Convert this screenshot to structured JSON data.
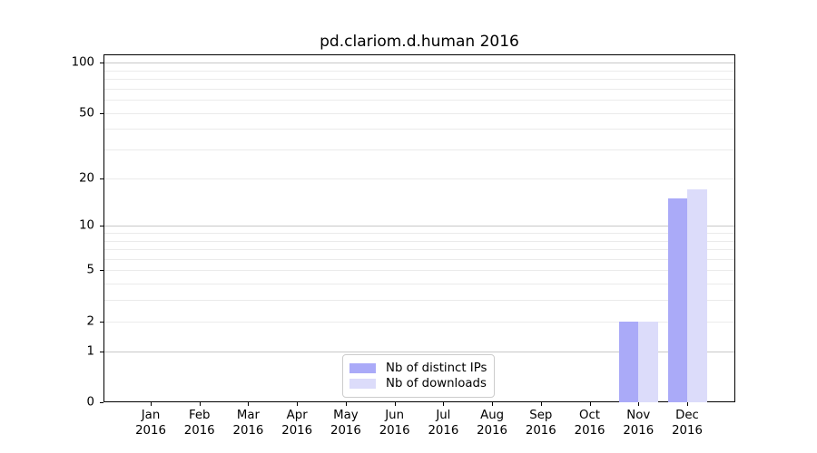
{
  "title": "pd.clariom.d.human 2016",
  "chart_data": {
    "type": "bar",
    "title": "pd.clariom.d.human 2016",
    "categories": [
      "Jan 2016",
      "Feb 2016",
      "Mar 2016",
      "Apr 2016",
      "May 2016",
      "Jun 2016",
      "Jul 2016",
      "Aug 2016",
      "Sep 2016",
      "Oct 2016",
      "Nov 2016",
      "Dec 2016"
    ],
    "series": [
      {
        "name": "Nb of distinct IPs",
        "color": "#aaaaf8",
        "values": [
          0,
          0,
          0,
          0,
          0,
          0,
          0,
          0,
          0,
          0,
          2,
          15
        ]
      },
      {
        "name": "Nb of downloads",
        "color": "#dcdcfa",
        "values": [
          0,
          0,
          0,
          0,
          0,
          0,
          0,
          0,
          0,
          0,
          2,
          17
        ]
      }
    ],
    "xlabel": "",
    "ylabel": "",
    "yscale": "log1p",
    "yticks": [
      0,
      1,
      2,
      5,
      10,
      20,
      50,
      100
    ],
    "ylim": [
      0,
      110
    ],
    "grid": true,
    "legend_position": "lower center"
  },
  "x_axis": {
    "months": [
      "Jan",
      "Feb",
      "Mar",
      "Apr",
      "May",
      "Jun",
      "Jul",
      "Aug",
      "Sep",
      "Oct",
      "Nov",
      "Dec"
    ],
    "year": "2016"
  },
  "colors": {
    "major_grid": "#c8c8c8",
    "minor_grid": "#ebebeb",
    "axis": "#000000",
    "legend_border": "#cccccc"
  }
}
